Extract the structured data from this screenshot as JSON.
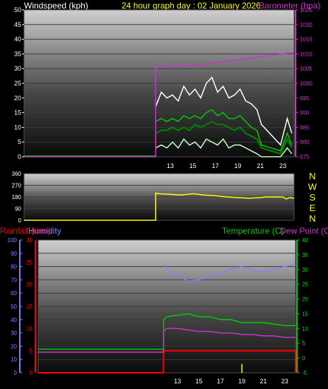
{
  "header": {
    "title": "24 hour graph day : 02 January 2026",
    "windspeed_label": "Windspeed (kph)",
    "barometer_label": "Barometer (hpa)"
  },
  "rain_panel": {
    "rainfall_label": "Rainfall (mm)",
    "humidity_label": "Humidity",
    "temperature_label": "Temperature (C)",
    "dewpoint_label": "Dew Point (C)"
  },
  "colors": {
    "background": "#000000",
    "title": "#ffff00",
    "barometer": "#cc33cc",
    "wind_gust": "#ffffff",
    "wind_avg": "#00cc00",
    "wind_dir": "#ffff00",
    "rainfall": "#ff0000",
    "humidity": "#8080ff",
    "temperature": "#00cc00",
    "dewpoint": "#cc33cc"
  },
  "chart_data": [
    {
      "type": "line",
      "name": "wind-barometer",
      "x_ticks": [
        "13",
        "15",
        "17",
        "19",
        "21",
        "23"
      ],
      "x_tick_hours": [
        13,
        15,
        17,
        19,
        21,
        23
      ],
      "xlim": [
        0,
        24
      ],
      "y_left_ticks": [
        "0",
        "5",
        "10",
        "15",
        "20",
        "25",
        "30",
        "35",
        "40",
        "45",
        "50"
      ],
      "ylim_left": [
        0,
        50
      ],
      "y_right_ticks": [
        "975",
        "980",
        "985",
        "990",
        "995",
        "1000",
        "1005",
        "1010",
        "1015",
        "1020",
        "1025"
      ],
      "ylim_right": [
        975,
        1025
      ],
      "series": [
        {
          "role": "barometer",
          "axis": "right",
          "color": "#cc33cc",
          "x": [
            0,
            11.7,
            11.7,
            12,
            14,
            16,
            18,
            20,
            22,
            24
          ],
          "y": [
            975,
            975,
            1005,
            1005.5,
            1006,
            1006.5,
            1007.5,
            1008.5,
            1009.5,
            1010.5
          ]
        },
        {
          "role": "gust_max",
          "axis": "left",
          "color": "#ffffff",
          "x": [
            11.7,
            12.2,
            12.7,
            13.2,
            13.7,
            14.2,
            14.7,
            15.2,
            15.7,
            16.2,
            16.7,
            17.2,
            17.7,
            18.2,
            18.7,
            19.2,
            19.7,
            20.2,
            20.7,
            21.1,
            22.8,
            23.4,
            23.8
          ],
          "y": [
            17,
            22,
            20,
            21,
            19,
            24,
            21,
            23,
            20,
            25,
            27,
            22,
            24,
            20,
            21,
            23,
            19,
            18,
            16,
            11,
            4,
            13,
            8
          ]
        },
        {
          "role": "wind_high",
          "axis": "left",
          "color": "#00cc00",
          "x": [
            11.7,
            12.2,
            12.7,
            13.2,
            13.7,
            14.2,
            14.7,
            15.2,
            15.7,
            16.2,
            16.7,
            17.2,
            17.7,
            18.2,
            18.7,
            19.2,
            19.7,
            20.2,
            20.7,
            21.1,
            22.8,
            23.4,
            23.8
          ],
          "y": [
            12,
            13,
            12,
            13,
            12,
            14,
            13,
            14,
            13,
            15,
            16,
            14,
            15,
            13,
            13,
            14,
            12,
            10,
            9,
            4,
            2,
            8,
            4
          ]
        },
        {
          "role": "wind_avg",
          "axis": "left",
          "color": "#008000",
          "x": [
            11.7,
            12.2,
            12.7,
            13.2,
            13.7,
            14.2,
            14.7,
            15.2,
            15.7,
            16.2,
            16.7,
            17.2,
            17.7,
            18.2,
            18.7,
            19.2,
            19.7,
            20.2,
            20.7,
            21.1,
            22.8,
            23.4,
            23.8
          ],
          "y": [
            8,
            9,
            9,
            10,
            9,
            10,
            9,
            11,
            10,
            11,
            12,
            11,
            11,
            10,
            9,
            10,
            8,
            7,
            6,
            3,
            1,
            6,
            3
          ]
        },
        {
          "role": "wind_low",
          "axis": "left",
          "color": "#ccffcc",
          "x": [
            11.7,
            12.2,
            12.7,
            13.2,
            13.7,
            14.2,
            14.7,
            15.2,
            15.7,
            16.2,
            16.7,
            17.2,
            17.7,
            18.2,
            18.7,
            19.2,
            19.7,
            20.2,
            20.7,
            21.1,
            22.8,
            23.4,
            23.8
          ],
          "y": [
            3,
            4,
            3,
            5,
            3,
            6,
            4,
            5,
            3,
            6,
            5,
            4,
            6,
            3,
            4,
            4,
            3,
            2,
            1,
            0,
            0,
            3,
            1
          ]
        }
      ]
    },
    {
      "type": "line",
      "name": "wind-direction",
      "xlim": [
        0,
        24
      ],
      "y_ticks": [
        "0",
        "90",
        "180",
        "270",
        "360"
      ],
      "ylim": [
        0,
        360
      ],
      "compass_labels": [
        "N",
        "W",
        "S",
        "E",
        "N"
      ],
      "series": [
        {
          "role": "direction",
          "color": "#ffff00",
          "x": [
            0,
            11.7,
            11.7,
            12,
            13,
            14,
            15,
            16,
            17,
            18,
            19,
            20,
            21,
            21.5,
            22,
            23,
            23.3,
            23.6,
            24
          ],
          "y": [
            0,
            0,
            210,
            205,
            200,
            195,
            205,
            195,
            190,
            180,
            175,
            170,
            175,
            180,
            180,
            180,
            165,
            175,
            170
          ]
        }
      ]
    },
    {
      "type": "line",
      "name": "rain-temperature",
      "x_ticks": [
        "13",
        "15",
        "17",
        "19",
        "21",
        "23"
      ],
      "x_tick_hours": [
        13,
        15,
        17,
        19,
        21,
        23
      ],
      "xlim": [
        0,
        24
      ],
      "y_humidity_ticks": [
        "0",
        "10",
        "20",
        "30",
        "40",
        "50",
        "60",
        "70",
        "80",
        "90",
        "100"
      ],
      "ylim_humidity": [
        0,
        100
      ],
      "y_rain_ticks": [
        "0",
        "5",
        "10",
        "15",
        "20",
        "25",
        "30"
      ],
      "ylim_rain": [
        0,
        30
      ],
      "y_temp_ticks": [
        "-5",
        "0",
        "5",
        "10",
        "15",
        "20",
        "25",
        "30",
        "35",
        "40"
      ],
      "ylim_temp": [
        -5,
        40
      ],
      "series": [
        {
          "role": "rainfall",
          "axis": "rain",
          "color": "#ff0000",
          "x": [
            0,
            11.7,
            11.7,
            24,
            24
          ],
          "y": [
            0,
            0,
            5,
            5,
            0
          ]
        },
        {
          "role": "humidity",
          "axis": "humidity",
          "color": "#8080ff",
          "x": [
            11.7,
            12,
            13,
            14,
            15,
            16,
            17,
            18,
            19,
            20,
            21,
            22,
            23,
            24
          ],
          "y": [
            82,
            78,
            73,
            69,
            70,
            73,
            75,
            78,
            80,
            77,
            76,
            78,
            80,
            82
          ]
        },
        {
          "role": "temperature",
          "axis": "temp",
          "color": "#00cc00",
          "x": [
            0,
            11.7,
            11.7,
            12,
            13,
            14,
            15,
            16,
            17,
            18,
            19,
            20,
            21,
            22,
            23,
            24
          ],
          "y": [
            3,
            3,
            13,
            14,
            14.5,
            15,
            14,
            14,
            13,
            13,
            12,
            12,
            12,
            11.5,
            11,
            11
          ]
        },
        {
          "role": "dewpoint",
          "axis": "temp",
          "color": "#cc33cc",
          "x": [
            0,
            11.7,
            11.7,
            12,
            13,
            14,
            15,
            16,
            17,
            18,
            19,
            20,
            21,
            22,
            23,
            24
          ],
          "y": [
            2,
            2,
            9,
            10,
            10,
            9.5,
            9,
            9,
            8.5,
            8.5,
            8,
            8,
            7.5,
            7.5,
            7,
            7
          ]
        },
        {
          "role": "rain_event",
          "axis": "rain",
          "color": "#ffff00",
          "x": [
            19
          ],
          "y": [
            2
          ]
        }
      ]
    }
  ]
}
